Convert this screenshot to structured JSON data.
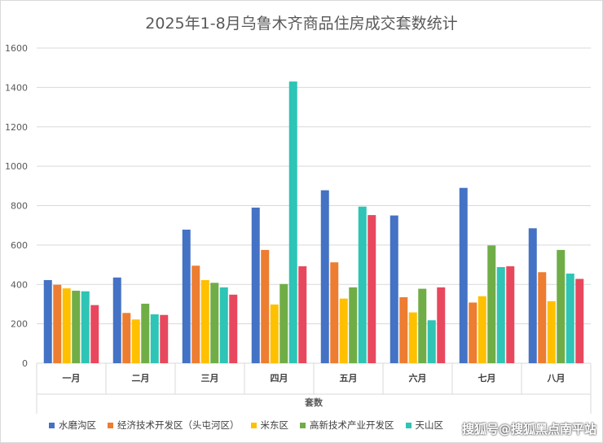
{
  "watermark": "搜狐号@搜狐黑点南平站",
  "chart_data": {
    "type": "bar",
    "title": "2025年1-8月乌鲁木齐商品住房成交套数统计",
    "xlabel": "套数",
    "ylabel": "",
    "ylim": [
      0,
      1600
    ],
    "yticks": [
      0,
      200,
      400,
      600,
      800,
      1000,
      1200,
      1400,
      1600
    ],
    "grid": true,
    "legend_position": "bottom",
    "categories": [
      "一月",
      "二月",
      "三月",
      "四月",
      "五月",
      "六月",
      "七月",
      "八月"
    ],
    "series": [
      {
        "name": "水磨沟区",
        "color": "#4472c4",
        "values": [
          422,
          435,
          678,
          790,
          878,
          750,
          890,
          685
        ]
      },
      {
        "name": "经济技术开发区（头屯河区）",
        "color": "#ed7d31",
        "values": [
          398,
          255,
          495,
          575,
          512,
          335,
          308,
          462
        ]
      },
      {
        "name": "米东区",
        "color": "#ffc000",
        "values": [
          380,
          222,
          422,
          298,
          328,
          258,
          340,
          315
        ]
      },
      {
        "name": "高新技术产业开发区",
        "color": "#70ad47",
        "values": [
          368,
          302,
          408,
          402,
          385,
          378,
          598,
          575
        ]
      },
      {
        "name": "天山区",
        "color": "#2ec4b6",
        "values": [
          365,
          248,
          385,
          1430,
          795,
          218,
          488,
          455
        ]
      },
      {
        "name": "",
        "color": "#e8485e",
        "values": [
          295,
          245,
          348,
          492,
          752,
          385,
          492,
          428
        ]
      }
    ]
  }
}
